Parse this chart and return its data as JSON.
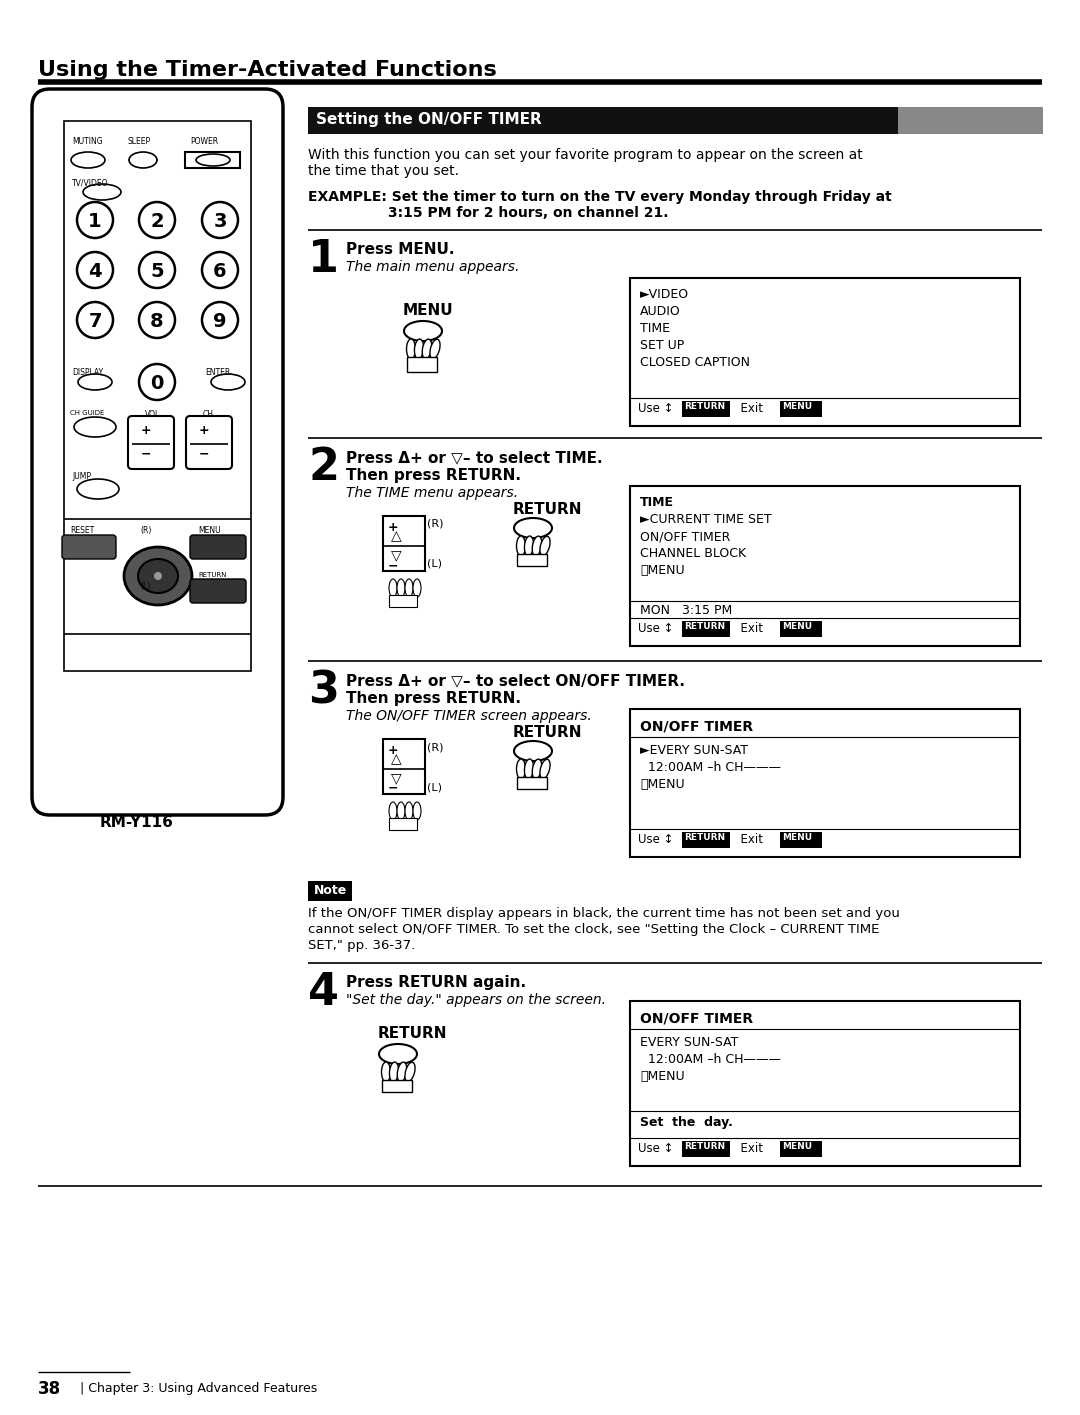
{
  "title": "Using the Timer-Activated Functions",
  "section_title": "Setting the ON/OFF TIMER",
  "bg_color": "#ffffff",
  "intro_text1": "With this function you can set your favorite program to appear on the screen at",
  "intro_text2": "the time that you set.",
  "example_line1": "EXAMPLE: Set the timer to turn on the TV every Monday through Friday at",
  "example_line2": "3:15 PM for 2 hours, on channel 21.",
  "step1_bold": "Press MENU.",
  "step1_italic": "The main menu appears.",
  "step2_bold1": "Press Δ+ or ▽– to select TIME.",
  "step2_bold2": "Then press RETURN.",
  "step2_italic": "The TIME menu appears.",
  "step3_bold1": "Press Δ+ or ▽– to select ON/OFF TIMER.",
  "step3_bold2": "Then press RETURN.",
  "step3_italic": "The ON/OFF TIMER screen appears.",
  "step4_bold": "Press RETURN again.",
  "step4_italic": "\"Set the day.\" appears on the screen.",
  "note_label": "Note",
  "note_text1": "If the ON/OFF TIMER display appears in black, the current time has not been set and you",
  "note_text2": "cannot select ON/OFF TIMER. To set the clock, see \"Setting the Clock – CURRENT TIME",
  "note_text3": "SET,\" pp. 36-37.",
  "box1_lines": [
    "►VIDEO",
    "AUDIO",
    "TIME",
    "SET UP",
    "CLOSED CAPTION"
  ],
  "box1_title": "",
  "box2_title": "TIME",
  "box2_lines": [
    "►CURRENT TIME SET",
    "ON/OFF TIMER",
    "CHANNEL BLOCK",
    "❓MENU"
  ],
  "box2_time": "MON   3:15 PM",
  "box3_title": "ON/OFF TIMER",
  "box3_lines": [
    "►EVERY SUN‐SAT",
    "  12:00AM –h CH———",
    "❓MENU"
  ],
  "box4_title": "ON/OFF TIMER",
  "box4_lines": [
    "EVERY SUN‐SAT",
    "  12:00AM –h CH———",
    "❓MENU"
  ],
  "box4_extra": "Set  the  day.",
  "rm_label": "RM-Y116",
  "footer": "38",
  "footer2": "Chapter 3: Using Advanced Features"
}
